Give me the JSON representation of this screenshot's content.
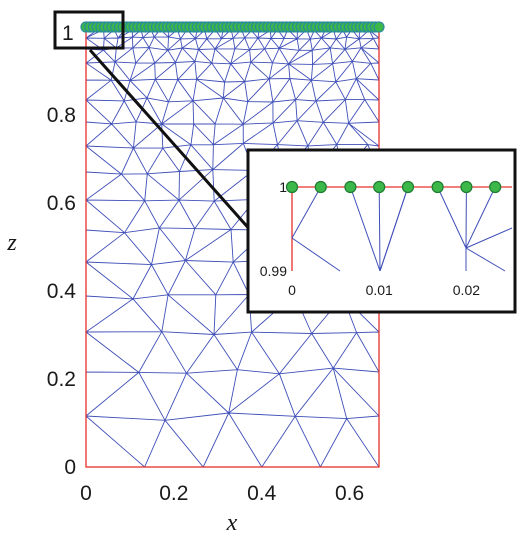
{
  "chart_data": [
    {
      "type": "scatter",
      "title": "",
      "xlabel": "x",
      "ylabel": "z",
      "xlim": [
        0,
        0.667
      ],
      "ylim": [
        0,
        1
      ],
      "x_ticks": [
        "0",
        "0.2",
        "0.4",
        "0.6"
      ],
      "x_tick_values": [
        0,
        0.2,
        0.4,
        0.6
      ],
      "y_ticks": [
        "0",
        "0.2",
        "0.4",
        "0.6",
        "0.8",
        "1"
      ],
      "y_tick_values": [
        0,
        0.2,
        0.4,
        0.6,
        0.8,
        1
      ],
      "grid": false,
      "legend": "none",
      "annotation": "1",
      "mesh": "triangular",
      "boundary_nodes": {
        "z": 1,
        "count": 80
      },
      "colors": {
        "mesh": "#3f4fb8",
        "boundary": "#e8302a",
        "node_fill": "#3cb84a",
        "node_edge": "#2a8a9a",
        "box": "#111111"
      }
    },
    {
      "type": "scatter",
      "title": "",
      "xlim": [
        0,
        0.025
      ],
      "ylim": [
        0.99,
        1
      ],
      "x_ticks": [
        "0",
        "0.01",
        "0.02"
      ],
      "x_tick_values": [
        0,
        0.01,
        0.02
      ],
      "y_ticks": [
        "0.99",
        "1"
      ],
      "y_tick_values": [
        0.99,
        1
      ],
      "nodes_x": [
        0,
        0.0033,
        0.0067,
        0.01,
        0.0133,
        0.0167,
        0.02,
        0.0233
      ],
      "nodes_z": [
        1,
        1,
        1,
        1,
        1,
        1,
        1,
        1
      ],
      "colors": {
        "mesh": "#3f4fb8",
        "boundary": "#e8302a",
        "node_fill": "#3cb84a",
        "node_edge": "#1e7a30"
      }
    }
  ]
}
